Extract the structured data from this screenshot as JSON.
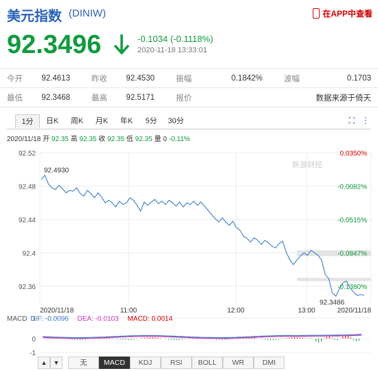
{
  "header": {
    "title": "美元指数",
    "code": "(DINIW)",
    "app_link": "在APP中查看"
  },
  "quote": {
    "price": "92.3496",
    "change": "-0.1034 (-0.1118%)",
    "time": "2020-11-18 13:33:01"
  },
  "stats": {
    "open_label": "今开",
    "open": "92.4613",
    "prev_label": "昨收",
    "prev": "92.4530",
    "amp_label": "振幅",
    "amp": "0.1842%",
    "wave_label": "波幅",
    "wave": "0.1703",
    "low_label": "最低",
    "low": "92.3468",
    "high_label": "最高",
    "high": "92.5171",
    "quote_label": "报价",
    "quote_src": "数据来源于倚天"
  },
  "tabs": [
    "1分",
    "日K",
    "周K",
    "月K",
    "年K",
    "5分",
    "30分"
  ],
  "chart_info": {
    "date": "2020/11/18",
    "open_label": "开",
    "open": "92.35",
    "high_label": "高",
    "high": "92.35",
    "close_label": "收",
    "close": "92.35",
    "low_label": "低",
    "low": "92.35",
    "vol_label": "量",
    "vol": "0",
    "pct": "-0.11%"
  },
  "macd": {
    "name": "MACD",
    "dif": "DIF: -0.0096",
    "dea": "DEA: -0.0103",
    "macd": "MACD: 0.0014"
  },
  "indicator_buttons": [
    "无",
    "MACD",
    "KDJ",
    "RSI",
    "BOLL",
    "WR",
    "DMI"
  ],
  "nav": {
    "up": "▲",
    "down": "▼"
  },
  "watermark": "新浪财经",
  "chart_data": {
    "type": "line",
    "y_ticks": [
      "92.52",
      "92.48",
      "92.44",
      "92.4",
      "92.36"
    ],
    "pct_ticks": [
      "0.0350%",
      "-0.0082%",
      "-0.0515%",
      "-0.0947%",
      "-0.1380%"
    ],
    "x_ticks": [
      "2020/11/18",
      "11:00",
      "12:00",
      "13:00",
      "2020/11/18"
    ],
    "ylim": [
      92.34,
      92.52
    ],
    "annotations": {
      "max": "92.4930",
      "min": "92.3486"
    },
    "macd_ticks": [
      "1",
      "0",
      "-1"
    ],
    "values": [
      92.488,
      92.493,
      92.483,
      92.478,
      92.476,
      92.481,
      92.477,
      92.472,
      92.475,
      92.474,
      92.478,
      92.471,
      92.468,
      92.475,
      92.471,
      92.466,
      92.472,
      92.467,
      92.46,
      92.463,
      92.46,
      92.455,
      92.462,
      92.458,
      92.46,
      92.466,
      92.463,
      92.457,
      92.45,
      92.461,
      92.457,
      92.461,
      92.464,
      92.459,
      92.462,
      92.458,
      92.463,
      92.46,
      92.456,
      92.461,
      92.455,
      92.46,
      92.458,
      92.462,
      92.457,
      92.461,
      92.456,
      92.451,
      92.446,
      92.441,
      92.437,
      92.442,
      92.437,
      92.433,
      92.438,
      92.43,
      92.427,
      92.42,
      92.417,
      92.413,
      92.418,
      92.415,
      92.41,
      92.415,
      92.412,
      92.408,
      92.406,
      92.411,
      92.414,
      92.401,
      92.392,
      92.386,
      92.391,
      92.396,
      92.4,
      92.397,
      92.403,
      92.4,
      92.397,
      92.391,
      92.374,
      92.369,
      92.352,
      92.348,
      92.357,
      92.364,
      92.366,
      92.358,
      92.353,
      92.349,
      92.35,
      92.349
    ]
  }
}
